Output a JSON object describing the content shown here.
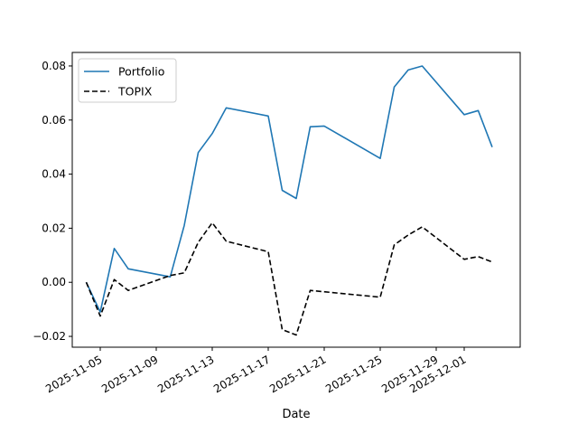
{
  "chart_data": {
    "type": "line",
    "xlabel": "Date",
    "ylabel": "",
    "title": "",
    "x_type": "date",
    "xlim": [
      "2025-11-03",
      "2025-12-05"
    ],
    "ylim": [
      -0.024,
      0.085
    ],
    "x_ticks": [
      {
        "date": "2025-11-05",
        "label": "2025-11-05"
      },
      {
        "date": "2025-11-09",
        "label": "2025-11-09"
      },
      {
        "date": "2025-11-13",
        "label": "2025-11-13"
      },
      {
        "date": "2025-11-17",
        "label": "2025-11-17"
      },
      {
        "date": "2025-11-21",
        "label": "2025-11-21"
      },
      {
        "date": "2025-11-25",
        "label": "2025-11-25"
      },
      {
        "date": "2025-11-29",
        "label": "2025-11-29"
      },
      {
        "date": "2025-12-01",
        "label": "2025-12-01"
      }
    ],
    "y_ticks": [
      {
        "value": -0.02,
        "label": "−0.02"
      },
      {
        "value": 0.0,
        "label": "0.00"
      },
      {
        "value": 0.02,
        "label": "0.02"
      },
      {
        "value": 0.04,
        "label": "0.04"
      },
      {
        "value": 0.06,
        "label": "0.06"
      },
      {
        "value": 0.08,
        "label": "0.08"
      }
    ],
    "grid": false,
    "legend_position": "top-left",
    "x": [
      "2025-11-04",
      "2025-11-05",
      "2025-11-06",
      "2025-11-07",
      "2025-11-10",
      "2025-11-11",
      "2025-11-12",
      "2025-11-13",
      "2025-11-14",
      "2025-11-17",
      "2025-11-18",
      "2025-11-19",
      "2025-11-20",
      "2025-11-21",
      "2025-11-25",
      "2025-11-26",
      "2025-11-27",
      "2025-11-28",
      "2025-12-01",
      "2025-12-02",
      "2025-12-03"
    ],
    "series": [
      {
        "name": "Portfolio",
        "color": "#1f77b4",
        "style": "solid",
        "values": [
          0.0,
          -0.011,
          0.0125,
          0.005,
          0.002,
          0.021,
          0.048,
          0.055,
          0.0645,
          0.0615,
          0.034,
          0.031,
          0.0575,
          0.0578,
          0.0458,
          0.0722,
          0.0785,
          0.08,
          0.062,
          0.0635,
          0.05
        ]
      },
      {
        "name": "TOPIX",
        "color": "#000000",
        "style": "dashed",
        "values": [
          0.0,
          -0.0125,
          0.001,
          -0.003,
          0.0025,
          0.0035,
          0.0148,
          0.022,
          0.0152,
          0.0113,
          -0.0175,
          -0.0195,
          -0.003,
          -0.0035,
          -0.0055,
          0.0138,
          0.0175,
          0.0205,
          0.0085,
          0.0095,
          0.0075
        ]
      }
    ]
  }
}
